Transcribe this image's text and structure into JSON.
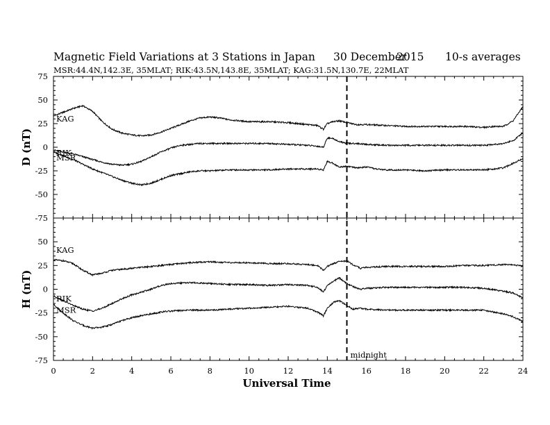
{
  "title": {
    "main": "Magnetic Field Variations at 3 Stations in Japan",
    "date_day": "30 December",
    "date_year": "2015",
    "averages": "10-s averages"
  },
  "subtitle": "MSR:44.4N,142.3E, 35MLAT;  RIK:43.5N,143.8E, 35MLAT;  KAG:31.5N,130.7E, 22MLAT",
  "chart_data": {
    "type": "line",
    "xlabel": "Universal Time",
    "xlim": [
      0,
      24
    ],
    "xticks": [
      0,
      2,
      4,
      6,
      8,
      10,
      12,
      14,
      16,
      18,
      20,
      22,
      24
    ],
    "xtick_labels": [
      "0",
      "2",
      "4",
      "6",
      "8",
      "10",
      "12",
      "14",
      "16",
      "18",
      "20",
      "22",
      "24"
    ],
    "marker": {
      "x": 15,
      "label": "midnight",
      "style": "dashed"
    },
    "panels": [
      {
        "ylabel": "D (nT)",
        "ylim": [
          -75,
          75
        ],
        "yticks": [
          75,
          50,
          25,
          0,
          -25,
          -50,
          -75
        ],
        "ytick_labels": [
          "75",
          "50",
          "25",
          "0",
          "-25",
          "-50",
          "-75"
        ],
        "series": [
          {
            "name": "KAG",
            "x": [
              0,
              0.5,
              1,
              1.5,
              2,
              2.5,
              3,
              3.5,
              4,
              4.5,
              5,
              5.5,
              6,
              6.5,
              7,
              7.5,
              8,
              8.5,
              9,
              9.5,
              10,
              11,
              12,
              13,
              13.5,
              13.8,
              14,
              14.3,
              14.6,
              15,
              15.5,
              16,
              17,
              18,
              19,
              20,
              21,
              22,
              22.5,
              23,
              23.5,
              24
            ],
            "y": [
              33,
              37,
              41,
              44,
              38,
              27,
              19,
              15,
              13,
              12,
              13,
              16,
              20,
              24,
              28,
              31,
              32,
              31,
              29,
              28,
              27,
              27,
              26,
              24,
              23,
              19,
              25,
              27,
              28,
              26,
              24,
              24,
              23,
              22,
              22,
              22,
              22,
              21,
              22,
              22,
              28,
              43
            ]
          },
          {
            "name": "RIK",
            "x": [
              0,
              0.5,
              1,
              1.5,
              2,
              2.5,
              3,
              3.5,
              4,
              4.5,
              5,
              5.5,
              6,
              6.5,
              7,
              7.5,
              8,
              9,
              10,
              11,
              12,
              13,
              13.5,
              13.8,
              14,
              14.3,
              14.6,
              15,
              15.5,
              16,
              17,
              18,
              19,
              20,
              21,
              22,
              22.5,
              23,
              23.5,
              24
            ],
            "y": [
              -3,
              -5,
              -7,
              -10,
              -13,
              -16,
              -18,
              -19,
              -18,
              -15,
              -10,
              -5,
              -1,
              2,
              3,
              4,
              4,
              4,
              4,
              4,
              3,
              2,
              1,
              0,
              10,
              9,
              6,
              4,
              4,
              3,
              2,
              2,
              2,
              2,
              2,
              2,
              3,
              4,
              7,
              15
            ]
          },
          {
            "name": "MSR",
            "x": [
              0,
              0.5,
              1,
              1.5,
              2,
              2.5,
              3,
              3.5,
              4,
              4.5,
              5,
              5.5,
              6,
              6.5,
              7,
              7.5,
              8,
              9,
              10,
              11,
              12,
              13,
              13.5,
              13.8,
              14,
              14.3,
              14.6,
              15,
              15.5,
              16,
              16.5,
              17,
              18,
              19,
              20,
              21,
              22,
              22.5,
              23,
              23.5,
              24
            ],
            "y": [
              -5,
              -9,
              -13,
              -18,
              -23,
              -27,
              -31,
              -35,
              -38,
              -40,
              -38,
              -34,
              -30,
              -28,
              -26,
              -25,
              -25,
              -24,
              -24,
              -24,
              -23,
              -23,
              -23,
              -24,
              -15,
              -17,
              -21,
              -20,
              -22,
              -21,
              -23,
              -24,
              -24,
              -25,
              -24,
              -24,
              -24,
              -23,
              -22,
              -17,
              -12
            ]
          }
        ]
      },
      {
        "ylabel": "H (nT)",
        "ylim": [
          -75,
          75
        ],
        "yticks": [
          75,
          50,
          25,
          0,
          -25,
          -50,
          -75
        ],
        "ytick_labels": [
          "75",
          "50",
          "25",
          "0",
          "-25",
          "-50",
          "-75"
        ],
        "series": [
          {
            "name": "KAG",
            "x": [
              0,
              0.5,
              1,
              1.5,
              2,
              2.5,
              3,
              3.5,
              4,
              4.5,
              5,
              5.5,
              6,
              7,
              8,
              9,
              10,
              11,
              12,
              13,
              13.5,
              13.8,
              14,
              14.3,
              14.6,
              15,
              15.3,
              15.7,
              16,
              17,
              18,
              19,
              20,
              21,
              22,
              23,
              23.5,
              24
            ],
            "y": [
              31,
              30,
              27,
              20,
              15,
              17,
              20,
              21,
              22,
              23,
              24,
              25,
              26,
              28,
              29,
              28,
              28,
              27,
              27,
              26,
              25,
              20,
              24,
              27,
              29,
              30,
              26,
              22,
              23,
              24,
              24,
              24,
              24,
              25,
              25,
              26,
              26,
              24
            ]
          },
          {
            "name": "RIK",
            "x": [
              0,
              0.5,
              1,
              1.5,
              2,
              2.5,
              3,
              3.5,
              4,
              4.5,
              5,
              5.5,
              6,
              7,
              8,
              9,
              10,
              11,
              12,
              13,
              13.5,
              13.8,
              14,
              14.3,
              14.6,
              15,
              15.3,
              15.7,
              16,
              17,
              18,
              19,
              20,
              21,
              22,
              23,
              23.5,
              24
            ],
            "y": [
              -7,
              -12,
              -17,
              -21,
              -23,
              -20,
              -15,
              -10,
              -6,
              -3,
              0,
              4,
              6,
              7,
              6,
              5,
              5,
              4,
              5,
              4,
              2,
              -3,
              4,
              8,
              12,
              6,
              3,
              0,
              1,
              2,
              2,
              2,
              2,
              2,
              1,
              -2,
              -4,
              -9
            ]
          },
          {
            "name": "MSR",
            "x": [
              0,
              0.5,
              1,
              1.5,
              2,
              2.5,
              3,
              3.5,
              4,
              4.5,
              5,
              5.5,
              6,
              7,
              8,
              9,
              10,
              11,
              12,
              13,
              13.5,
              13.8,
              14,
              14.3,
              14.6,
              15,
              15.3,
              15.7,
              16,
              17,
              18,
              19,
              20,
              21,
              22,
              23,
              23.5,
              24
            ],
            "y": [
              -16,
              -25,
              -33,
              -38,
              -41,
              -40,
              -37,
              -33,
              -30,
              -28,
              -26,
              -24,
              -23,
              -22,
              -22,
              -21,
              -20,
              -19,
              -18,
              -20,
              -24,
              -28,
              -20,
              -14,
              -12,
              -17,
              -21,
              -20,
              -21,
              -22,
              -22,
              -22,
              -22,
              -22,
              -22,
              -26,
              -29,
              -34
            ]
          }
        ]
      }
    ]
  }
}
